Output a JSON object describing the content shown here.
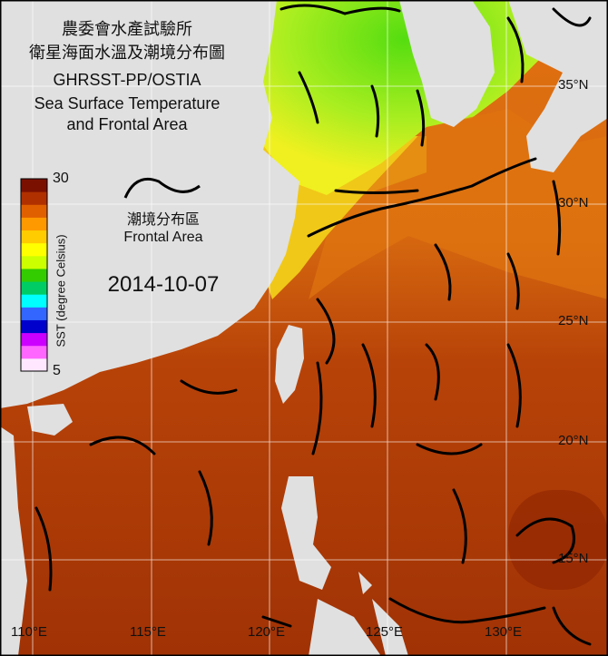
{
  "title": {
    "line1": "農委會水產試驗所",
    "line2": "衛星海面水溫及潮境分布圖",
    "line3": "GHRSST-PP/OSTIA",
    "line4": "Sea Surface Temperature",
    "line5": "and Frontal Area"
  },
  "legend": {
    "front_label_zh": "潮境分布區",
    "front_label_en": "Frontal Area"
  },
  "date": "2014-10-07",
  "colorbar": {
    "label": "SST (degree Celsius)",
    "max": "30",
    "min": "5",
    "colors": [
      "#ffe8ff",
      "#ff66ff",
      "#cc00ff",
      "#0000cc",
      "#3366ff",
      "#00ffff",
      "#00cc66",
      "#33cc00",
      "#ccff00",
      "#ffff00",
      "#ffcc00",
      "#ff9900",
      "#e06000",
      "#b03000",
      "#7a1000"
    ]
  },
  "axes": {
    "longitude_labels": [
      "110°E",
      "115°E",
      "120°E",
      "125°E",
      "130°E"
    ],
    "latitude_labels": [
      "35°N",
      "30°N",
      "25°N",
      "20°N",
      "15°N"
    ]
  },
  "colors": {
    "land": "#e0e0e0",
    "front": "#000000",
    "warm_sea": "#b03a05",
    "cool_sea": "#7ee020"
  }
}
